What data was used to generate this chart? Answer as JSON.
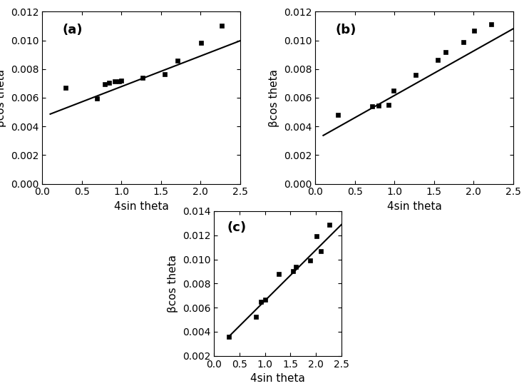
{
  "a": {
    "label": "(a)",
    "x": [
      0.29,
      0.69,
      0.79,
      0.84,
      0.92,
      0.97,
      1.0,
      1.27,
      1.55,
      1.71,
      2.01,
      2.27
    ],
    "y": [
      0.0067,
      0.00595,
      0.00695,
      0.00705,
      0.00715,
      0.00715,
      0.0072,
      0.0074,
      0.00762,
      0.00858,
      0.00985,
      0.01105
    ],
    "line_x": [
      0.1,
      2.5
    ],
    "line_slope": 0.00213,
    "line_intercept": 0.00465,
    "xlim": [
      0.0,
      2.5
    ],
    "ylim": [
      0.0,
      0.012
    ],
    "yticks": [
      0.0,
      0.002,
      0.004,
      0.006,
      0.008,
      0.01,
      0.012
    ],
    "xticks": [
      0.0,
      0.5,
      1.0,
      1.5,
      2.0,
      2.5
    ]
  },
  "b": {
    "label": "(b)",
    "x": [
      0.29,
      0.72,
      0.8,
      0.93,
      0.99,
      1.27,
      1.55,
      1.65,
      1.87,
      2.01,
      2.22
    ],
    "y": [
      0.0048,
      0.0054,
      0.00545,
      0.00548,
      0.0065,
      0.0076,
      0.00865,
      0.0092,
      0.00988,
      0.0107,
      0.01115
    ],
    "line_x": [
      0.1,
      2.5
    ],
    "line_slope": 0.0031,
    "line_intercept": 0.00306,
    "xlim": [
      0.0,
      2.5
    ],
    "ylim": [
      0.0,
      0.012
    ],
    "yticks": [
      0.0,
      0.002,
      0.004,
      0.006,
      0.008,
      0.01,
      0.012
    ],
    "xticks": [
      0.0,
      0.5,
      1.0,
      1.5,
      2.0,
      2.5
    ]
  },
  "c": {
    "label": "(c)",
    "x": [
      0.29,
      0.82,
      0.92,
      1.0,
      1.27,
      1.55,
      1.6,
      1.88,
      2.01,
      2.1,
      2.27
    ],
    "y": [
      0.00358,
      0.00525,
      0.0065,
      0.00665,
      0.0088,
      0.00905,
      0.0094,
      0.0099,
      0.01195,
      0.0107,
      0.01285
    ],
    "line_x": [
      0.28,
      2.5
    ],
    "line_slope": 0.0042,
    "line_intercept": 0.00238,
    "xlim": [
      0.0,
      2.5
    ],
    "ylim": [
      0.002,
      0.014
    ],
    "yticks": [
      0.002,
      0.004,
      0.006,
      0.008,
      0.01,
      0.012,
      0.014
    ],
    "xticks": [
      0.0,
      0.5,
      1.0,
      1.5,
      2.0,
      2.5
    ]
  },
  "marker": "s",
  "marker_size": 5,
  "marker_color": "black",
  "line_color": "black",
  "line_width": 1.5,
  "xlabel": "4sin theta",
  "ylabel": "βcos theta",
  "label_fontsize": 11,
  "tick_fontsize": 10,
  "panel_label_fontsize": 13
}
